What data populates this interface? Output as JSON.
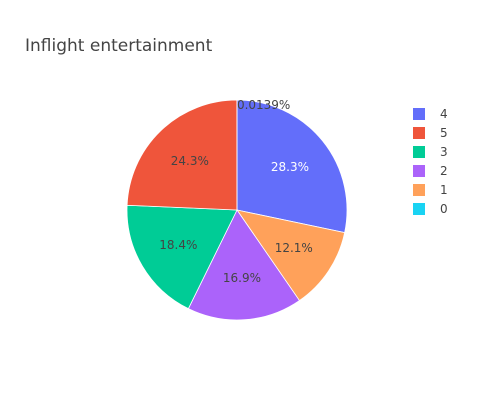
{
  "chart_data": {
    "type": "pie",
    "title": "Inflight entertainment",
    "direction": "clockwise",
    "start_angle_deg": 0,
    "legend_placement": "right",
    "label_format": "percent",
    "slices": [
      {
        "label": "4",
        "percent": 28.3,
        "percent_text": "28.3%",
        "color": "#636efa",
        "text_color": "#ffffff",
        "label_position": "inside"
      },
      {
        "label": "1",
        "percent": 12.1,
        "percent_text": "12.1%",
        "color": "#ffa15a",
        "text_color": "#444444",
        "label_position": "inside"
      },
      {
        "label": "2",
        "percent": 16.9,
        "percent_text": "16.9%",
        "color": "#ab63fa",
        "text_color": "#444444",
        "label_position": "inside"
      },
      {
        "label": "3",
        "percent": 18.4,
        "percent_text": "18.4%",
        "color": "#00cc96",
        "text_color": "#444444",
        "label_position": "inside"
      },
      {
        "label": "5",
        "percent": 24.3,
        "percent_text": "24.3%",
        "color": "#ef553b",
        "text_color": "#444444",
        "label_position": "inside"
      },
      {
        "label": "0",
        "percent": 0.0139,
        "percent_text": "0.0139%",
        "color": "#19d3f3",
        "text_color": "#444444",
        "label_position": "outside"
      }
    ],
    "legend_order": [
      "4",
      "5",
      "3",
      "2",
      "1",
      "0"
    ]
  }
}
